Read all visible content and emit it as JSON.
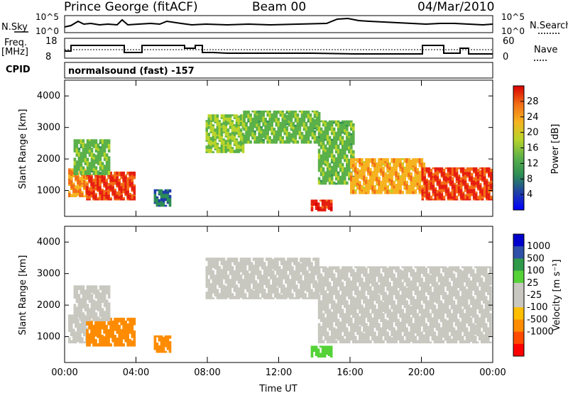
{
  "header": {
    "station": "Prince George (fitACF)",
    "beam": "Beam 00",
    "date": "04/Mar/2010"
  },
  "strip_labels": {
    "nsky": "N.Sky",
    "nsky_ticks": [
      "10^5",
      "10^0"
    ],
    "nsearch": "N.Search",
    "nsearch_ticks": [
      "10^5",
      "10^0"
    ],
    "freq_line1": "Freq.",
    "freq_line2": "[MHz]",
    "freq_ticks": [
      "18",
      "8"
    ],
    "nave": "Nave",
    "nave_ticks": [
      "60",
      "0"
    ],
    "cpid": "CPID",
    "cpid_text": "normalsound (fast) -157"
  },
  "colors": {
    "power_scale": [
      "#0000ff",
      "#1f3fa8",
      "#2c8d55",
      "#5ab04a",
      "#b9d42a",
      "#f6b321",
      "#f36f16",
      "#e61e10",
      "#d80000"
    ],
    "velocity_scale": [
      "#ff0000",
      "#ff4a00",
      "#ff8c00",
      "#ffbf00",
      "#c8c8c0",
      "#c8c8c0",
      "#55d238",
      "#2e9a4a",
      "#2e50a8",
      "#0000cc"
    ]
  },
  "chart_data": [
    {
      "type": "heatmap",
      "name": "power",
      "ylabel": "Slant Range [km]",
      "ylim": [
        180,
        4500
      ],
      "yticks": [
        "1000",
        "2000",
        "3000",
        "4000"
      ],
      "colorbar_label": "Power [dB]",
      "colorbar_ticks": [
        "4",
        "8",
        "12",
        "16",
        "20",
        "24",
        "28"
      ],
      "x": [
        "00:00",
        "04:00",
        "08:00",
        "12:00",
        "16:00",
        "20:00",
        "00:00"
      ],
      "regions": [
        {
          "t0": 0.2,
          "t1": 1.2,
          "r0": 800,
          "r1": 1700,
          "power": 22
        },
        {
          "t0": 1.2,
          "t1": 3.9,
          "r0": 700,
          "r1": 1600,
          "power": 26
        },
        {
          "t0": 0.5,
          "t1": 2.5,
          "r0": 1500,
          "r1": 2600,
          "power": 12
        },
        {
          "t0": 5.0,
          "t1": 5.9,
          "r0": 500,
          "r1": 1000,
          "power": 6
        },
        {
          "t0": 7.9,
          "t1": 10.0,
          "r0": 2200,
          "r1": 3400,
          "power": 14
        },
        {
          "t0": 10.0,
          "t1": 14.2,
          "r0": 2500,
          "r1": 3500,
          "power": 12
        },
        {
          "t0": 13.8,
          "t1": 14.9,
          "r0": 350,
          "r1": 700,
          "power": 27
        },
        {
          "t0": 14.2,
          "t1": 16.2,
          "r0": 1200,
          "r1": 3200,
          "power": 12
        },
        {
          "t0": 16.0,
          "t1": 20.2,
          "r0": 900,
          "r1": 2000,
          "power": 20
        },
        {
          "t0": 20.0,
          "t1": 23.9,
          "r0": 700,
          "r1": 1700,
          "power": 26
        }
      ]
    },
    {
      "type": "heatmap",
      "name": "velocity",
      "ylabel": "Slant Range [km]",
      "ylim": [
        180,
        4500
      ],
      "yticks": [
        "1000",
        "2000",
        "3000",
        "4000"
      ],
      "xlabel": "Time UT",
      "colorbar_label": "Velocity [m s⁻¹]",
      "colorbar_ticks": [
        "1000",
        "500",
        "100",
        "25",
        "-25",
        "-100",
        "-500",
        "-1000"
      ],
      "x": [
        "00:00",
        "04:00",
        "08:00",
        "12:00",
        "16:00",
        "20:00",
        "00:00"
      ],
      "regions": [
        {
          "t0": 0.2,
          "t1": 1.2,
          "r0": 800,
          "r1": 1700,
          "velocity": 0
        },
        {
          "t0": 1.2,
          "t1": 3.9,
          "r0": 700,
          "r1": 1600,
          "velocity": -150
        },
        {
          "t0": 0.5,
          "t1": 2.5,
          "r0": 1500,
          "r1": 2600,
          "velocity": 0
        },
        {
          "t0": 5.0,
          "t1": 5.9,
          "r0": 500,
          "r1": 1000,
          "velocity": -120
        },
        {
          "t0": 7.9,
          "t1": 14.2,
          "r0": 2200,
          "r1": 3500,
          "velocity": 0
        },
        {
          "t0": 13.8,
          "t1": 14.9,
          "r0": 350,
          "r1": 700,
          "velocity": 60
        },
        {
          "t0": 14.2,
          "t1": 23.9,
          "r0": 800,
          "r1": 3200,
          "velocity": 0
        }
      ]
    }
  ]
}
